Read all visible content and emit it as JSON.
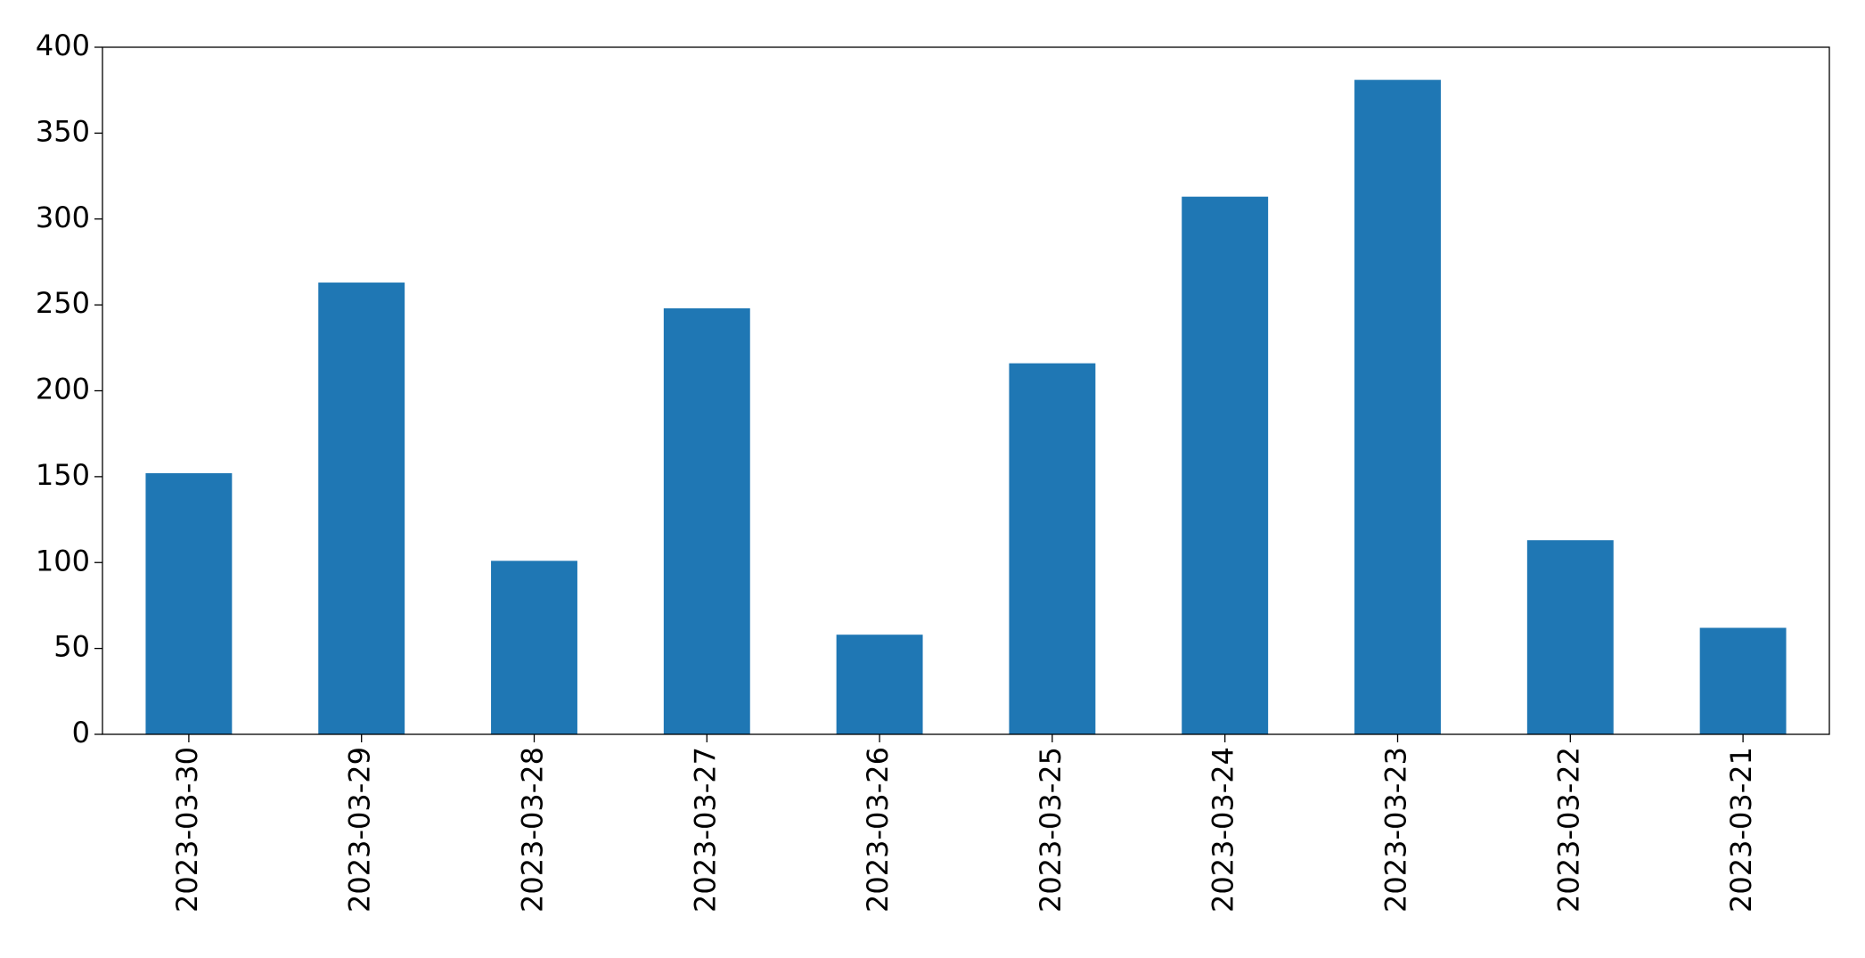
{
  "chart_data": {
    "type": "bar",
    "categories": [
      "2023-03-30",
      "2023-03-29",
      "2023-03-28",
      "2023-03-27",
      "2023-03-26",
      "2023-03-25",
      "2023-03-24",
      "2023-03-23",
      "2023-03-22",
      "2023-03-21"
    ],
    "values": [
      152,
      263,
      101,
      248,
      58,
      216,
      313,
      381,
      113,
      62
    ],
    "color": "#1f77b4",
    "ylim": [
      0,
      400
    ],
    "yticks": [
      0,
      50,
      100,
      150,
      200,
      250,
      300,
      350,
      400
    ],
    "grid": false
  }
}
